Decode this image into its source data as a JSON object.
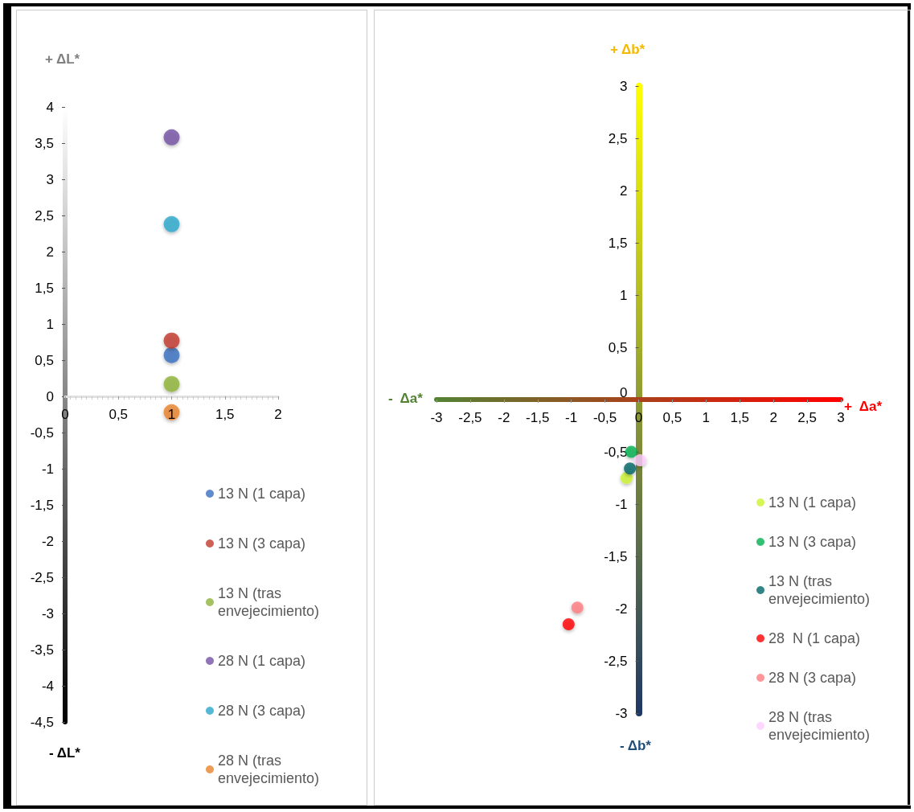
{
  "chart_data": [
    {
      "type": "scatter",
      "annotations": [
        "+ ΔL*",
        "- ΔL*"
      ],
      "xlim": [
        0,
        2
      ],
      "xticks": [
        0,
        {
          "value": 0.5,
          "label": "0,5"
        },
        1,
        {
          "value": 1.5,
          "label": "1,5"
        },
        2
      ],
      "ylim": [
        -4.5,
        4
      ],
      "yticks": [
        {
          "value": -4.5,
          "label": "-4,5"
        },
        -4,
        {
          "value": -3.5,
          "label": "-3,5"
        },
        -3,
        {
          "value": -2.5,
          "label": "-2,5"
        },
        -2,
        {
          "value": -1.5,
          "label": "-1,5"
        },
        -1,
        {
          "value": -0.5,
          "label": "-0,5"
        },
        0,
        {
          "value": 0.5,
          "label": "0,5"
        },
        1,
        {
          "value": 1.5,
          "label": "1,5"
        },
        2,
        {
          "value": 2.5,
          "label": "2,5"
        },
        3,
        {
          "value": 3.5,
          "label": "3,5"
        },
        4
      ],
      "grid": false,
      "legend": "bottom right",
      "marker": "circle",
      "series": [
        {
          "name": "13 N (1 capa)",
          "color": "#3a6fbf",
          "x": [
            1
          ],
          "values": [
            0.57
          ]
        },
        {
          "name": "13 N (3 capa)",
          "color": "#c0392b",
          "x": [
            1
          ],
          "values": [
            0.77
          ]
        },
        {
          "name": "13 N (tras envejecimiento)",
          "color": "#8db33a",
          "x": [
            1
          ],
          "values": [
            0.17
          ]
        },
        {
          "name": "28 N (1 capa)",
          "color": "#7451a3",
          "x": [
            1
          ],
          "values": [
            3.58
          ]
        },
        {
          "name": "28 N (3 capa)",
          "color": "#2aa8cc",
          "x": [
            1
          ],
          "values": [
            2.38
          ]
        },
        {
          "name": "28 N (tras envejecimiento)",
          "color": "#e8832a",
          "x": [
            1
          ],
          "values": [
            -0.22
          ]
        }
      ]
    },
    {
      "type": "scatter",
      "annotations": [
        "+ Δb*",
        "- Δb*",
        "-  Δa*",
        "+  Δa*"
      ],
      "xlim": [
        -3,
        3
      ],
      "xticks": [
        -3,
        {
          "value": -2.5,
          "label": "-2,5"
        },
        -2,
        {
          "value": -1.5,
          "label": "-1,5"
        },
        -1,
        {
          "value": -0.5,
          "label": "-0,5"
        },
        0,
        {
          "value": 0.5,
          "label": "0,5"
        },
        1,
        {
          "value": 1.5,
          "label": "1,5"
        },
        2,
        {
          "value": 2.5,
          "label": "2,5"
        },
        3
      ],
      "ylim": [
        -3,
        3
      ],
      "yticks": [
        -3,
        {
          "value": -2.5,
          "label": "-2,5"
        },
        -2,
        {
          "value": -1.5,
          "label": "-1,5"
        },
        -1,
        {
          "value": -0.5,
          "label": "-0,5"
        },
        0,
        {
          "value": 0.5,
          "label": "0,5"
        },
        1,
        {
          "value": 1.5,
          "label": "1,5"
        },
        2,
        {
          "value": 2.5,
          "label": "2,5"
        },
        3
      ],
      "grid": false,
      "legend": "bottom right",
      "marker": "circle",
      "series": [
        {
          "name": "13 N (1 capa)",
          "color": "#ccf22e",
          "x": [
            -0.18
          ],
          "values": [
            -0.75
          ]
        },
        {
          "name": "13 N (3 capa)",
          "color": "#00b050",
          "x": [
            -0.11
          ],
          "values": [
            -0.5
          ]
        },
        {
          "name": "13 N (tras envejecimiento)",
          "color": "#006666",
          "x": [
            -0.13
          ],
          "values": [
            -0.66
          ]
        },
        {
          "name": "28  N (1 capa)",
          "color": "#ff0000",
          "x": [
            -1.04
          ],
          "values": [
            -2.15
          ]
        },
        {
          "name": "28 N (3 capa)",
          "color": "#ff7c80",
          "x": [
            -0.91
          ],
          "values": [
            -1.99
          ]
        },
        {
          "name": "28 N (tras envejecimiento)",
          "color": "#ffccff",
          "x": [
            0.02
          ],
          "values": [
            -0.58
          ]
        }
      ]
    }
  ]
}
